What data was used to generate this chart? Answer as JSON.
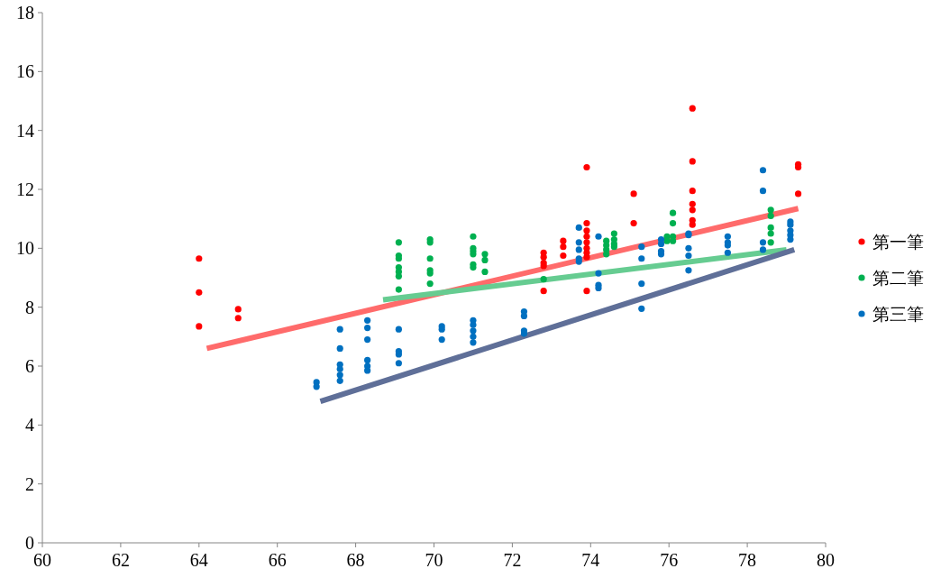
{
  "chart_data": {
    "type": "scatter",
    "xlim": [
      60,
      80
    ],
    "xticks": [
      60,
      62,
      64,
      66,
      68,
      70,
      72,
      74,
      76,
      78,
      80
    ],
    "ylim": [
      0,
      18
    ],
    "yticks": [
      0,
      2,
      4,
      6,
      8,
      10,
      12,
      14,
      16,
      18
    ],
    "grid": false,
    "legend": "right",
    "marker": "circle",
    "series": [
      {
        "type": "line",
        "color": "#ff6b6b",
        "x": [
          64.2,
          79.3
        ],
        "values": [
          6.6,
          11.35
        ],
        "marker": "none"
      },
      {
        "type": "line",
        "color": "#66cc91",
        "x": [
          68.7,
          79
        ],
        "values": [
          8.25,
          9.95
        ],
        "marker": "none"
      },
      {
        "type": "line",
        "color": "#5f6f98",
        "x": [
          67.1,
          79.2
        ],
        "values": [
          4.8,
          9.95
        ],
        "marker": "none"
      },
      {
        "name": "第一筆",
        "color": "#ff0000",
        "x": [
          64,
          64,
          64,
          65,
          65,
          72.8,
          72.8,
          72.8,
          72.8,
          72.8,
          73.3,
          73.3,
          73.3,
          73.9,
          73.9,
          73.9,
          73.9,
          73.9,
          73.9,
          73.9,
          73.9,
          73.9,
          75.1,
          75.1,
          76.6,
          76.6,
          76.6,
          76.6,
          76.6,
          76.6,
          76.6,
          79.3,
          79.3,
          79.3
        ],
        "values": [
          9.65,
          8.5,
          7.35,
          7.93,
          7.63,
          9.85,
          9.7,
          9.5,
          9.4,
          8.55,
          10.25,
          10.05,
          9.75,
          12.75,
          10.85,
          10.6,
          10.4,
          10.2,
          10,
          9.85,
          9.7,
          8.55,
          11.85,
          10.85,
          14.75,
          12.95,
          11.95,
          11.5,
          11.3,
          10.95,
          10.8,
          12.85,
          12.75,
          11.85
        ]
      },
      {
        "name": "第二筆",
        "color": "#00b050",
        "x": [
          69.1,
          69.1,
          69.1,
          69.1,
          69.1,
          69.1,
          69.1,
          69.9,
          69.9,
          69.9,
          69.9,
          69.9,
          69.9,
          71,
          71,
          71,
          71,
          71,
          71,
          71.3,
          71.3,
          71.3,
          72.8,
          74.4,
          74.4,
          74.4,
          74.4,
          74.6,
          74.6,
          74.6,
          74.6,
          75.95,
          75.95,
          76.1,
          76.1,
          76.1,
          76.1,
          78.6,
          78.6,
          78.6,
          78.6,
          78.6
        ],
        "values": [
          10.2,
          9.75,
          9.65,
          9.35,
          9.2,
          9.05,
          8.6,
          10.3,
          10.2,
          9.65,
          9.25,
          9.15,
          8.8,
          10.4,
          10,
          9.9,
          9.8,
          9.45,
          9.35,
          9.8,
          9.6,
          9.2,
          8.95,
          10.25,
          10.1,
          9.95,
          9.8,
          10.5,
          10.3,
          10.15,
          10.05,
          10.4,
          10.25,
          11.2,
          10.85,
          10.4,
          10.25,
          11.3,
          11.1,
          10.7,
          10.5,
          10.2
        ]
      },
      {
        "name": "第三筆",
        "color": "#0070c0",
        "x": [
          67,
          67,
          67.6,
          67.6,
          67.6,
          67.6,
          67.6,
          67.6,
          68.3,
          68.3,
          68.3,
          68.3,
          68.3,
          68.3,
          69.1,
          69.1,
          69.1,
          69.1,
          70.2,
          70.2,
          70.2,
          71,
          71,
          71,
          71,
          71,
          72.3,
          72.3,
          72.3,
          72.3,
          73.7,
          73.7,
          73.7,
          73.7,
          73.7,
          74.2,
          74.2,
          74.2,
          74.2,
          75.3,
          75.3,
          75.3,
          75.3,
          75.8,
          75.8,
          75.8,
          75.8,
          76.5,
          76.5,
          76.5,
          76.5,
          76.5,
          77.5,
          77.5,
          77.5,
          77.5,
          78.4,
          78.4,
          78.4,
          78.4,
          79.1,
          79.1,
          79.1,
          79.1,
          79.1
        ],
        "values": [
          5.45,
          5.3,
          7.25,
          6.6,
          6.05,
          5.9,
          5.7,
          5.5,
          7.55,
          7.3,
          6.9,
          6.2,
          6,
          5.85,
          7.25,
          6.5,
          6.4,
          6.1,
          7.35,
          7.25,
          6.9,
          7.55,
          7.4,
          7.2,
          7,
          6.8,
          7.85,
          7.7,
          7.2,
          7.1,
          10.7,
          10.2,
          9.95,
          9.65,
          9.55,
          10.4,
          9.15,
          8.75,
          8.65,
          10.05,
          9.65,
          8.8,
          7.95,
          10.3,
          10.15,
          9.9,
          9.8,
          10.5,
          10.45,
          10,
          9.75,
          9.25,
          10.4,
          10.2,
          10.1,
          9.85,
          12.65,
          11.95,
          10.2,
          9.95,
          10.9,
          10.8,
          10.6,
          10.45,
          10.3
        ]
      }
    ]
  }
}
